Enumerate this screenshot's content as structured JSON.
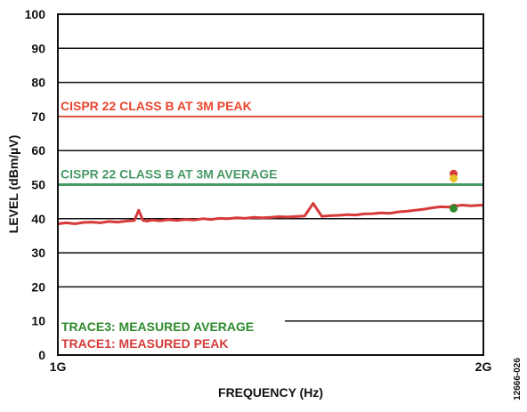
{
  "chart_data": {
    "type": "line",
    "xlabel": "FREQUENCY (Hz)",
    "ylabel": "LEVEL (dBm/µV)",
    "x_ticks": [
      "1G",
      "2G"
    ],
    "x_range_ghz": [
      1,
      2
    ],
    "ylim": [
      0,
      100
    ],
    "y_ticks": [
      "0",
      "10",
      "20",
      "30",
      "40",
      "50",
      "60",
      "70",
      "80",
      "90",
      "100"
    ],
    "grid": true,
    "figure_id": "12666-026",
    "limit_lines": [
      {
        "label": "CISPR 22 CLASS B AT 3M PEAK",
        "value": 70,
        "color": "#e8452c"
      },
      {
        "label": "CISPR 22 CLASS B AT 3M AVERAGE",
        "value": 50,
        "color": "#4a9a68"
      }
    ],
    "legend": [
      {
        "label": "TRACE3: MEASURED AVERAGE",
        "color": "#2e8b2e"
      },
      {
        "label": "TRACE1: MEASURED PEAK",
        "color": "#d63a3a"
      }
    ],
    "series": [
      {
        "color": "#d63a3a",
        "x": [
          1.0,
          1.02,
          1.04,
          1.06,
          1.08,
          1.1,
          1.12,
          1.14,
          1.16,
          1.18,
          1.19,
          1.2,
          1.21,
          1.22,
          1.24,
          1.26,
          1.28,
          1.3,
          1.32,
          1.34,
          1.36,
          1.38,
          1.4,
          1.42,
          1.44,
          1.46,
          1.48,
          1.5,
          1.52,
          1.54,
          1.58,
          1.6,
          1.62,
          1.64,
          1.66,
          1.68,
          1.7,
          1.72,
          1.74,
          1.76,
          1.78,
          1.8,
          1.82,
          1.84,
          1.86,
          1.88,
          1.9,
          1.92,
          1.93,
          1.94,
          1.95,
          1.97,
          2.0
        ],
        "values": [
          38.5,
          38.8,
          38.5,
          38.9,
          39.0,
          38.8,
          39.2,
          39.0,
          39.3,
          39.5,
          42.5,
          39.5,
          39.3,
          39.6,
          39.4,
          39.7,
          39.5,
          39.8,
          39.6,
          40.0,
          39.8,
          40.1,
          40.0,
          40.3,
          40.1,
          40.4,
          40.3,
          40.4,
          40.6,
          40.5,
          40.8,
          44.5,
          40.7,
          40.9,
          41.0,
          41.2,
          41.1,
          41.4,
          41.5,
          41.7,
          41.6,
          42.0,
          42.2,
          42.5,
          42.8,
          43.2,
          43.5,
          43.4,
          44.0,
          43.8,
          44.0,
          43.8,
          44.0
        ]
      }
    ],
    "markers": [
      {
        "x": 1.93,
        "value": 53.2,
        "color": "#d63a3a"
      },
      {
        "x": 1.93,
        "value": 51.8,
        "color": "#e8c12a"
      },
      {
        "x": 1.93,
        "value": 43.0,
        "color": "#2e8b2e"
      }
    ]
  }
}
